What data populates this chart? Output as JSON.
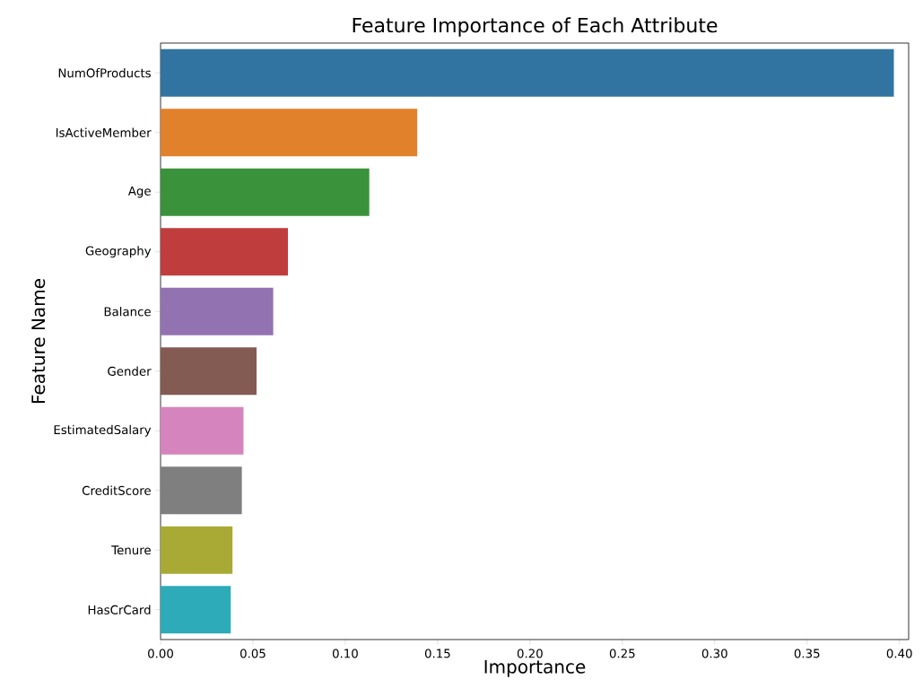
{
  "chart_data": {
    "type": "bar",
    "orientation": "horizontal",
    "title": "Feature Importance of Each Attribute",
    "xlabel": "Importance",
    "ylabel": "Feature Name",
    "categories": [
      "NumOfProducts",
      "IsActiveMember",
      "Age",
      "Geography",
      "Balance",
      "Gender",
      "EstimatedSalary",
      "CreditScore",
      "Tenure",
      "HasCrCard"
    ],
    "values": [
      0.397,
      0.139,
      0.113,
      0.069,
      0.061,
      0.052,
      0.045,
      0.044,
      0.039,
      0.038
    ],
    "colors": [
      "#3274a1",
      "#e1812c",
      "#3a923a",
      "#c03d3e",
      "#9372b2",
      "#845b53",
      "#d684bd",
      "#7f7f7f",
      "#a9aa35",
      "#2eabb8"
    ],
    "xlim": [
      0,
      0.405
    ],
    "xticks": [
      {
        "value": 0,
        "label": "0.00"
      },
      {
        "value": 0.05,
        "label": "0.05"
      },
      {
        "value": 0.1,
        "label": "0.10"
      },
      {
        "value": 0.15,
        "label": "0.15"
      },
      {
        "value": 0.2,
        "label": "0.20"
      },
      {
        "value": 0.25,
        "label": "0.25"
      },
      {
        "value": 0.3,
        "label": "0.30"
      },
      {
        "value": 0.35,
        "label": "0.35"
      },
      {
        "value": 0.4,
        "label": "0.40"
      }
    ]
  }
}
